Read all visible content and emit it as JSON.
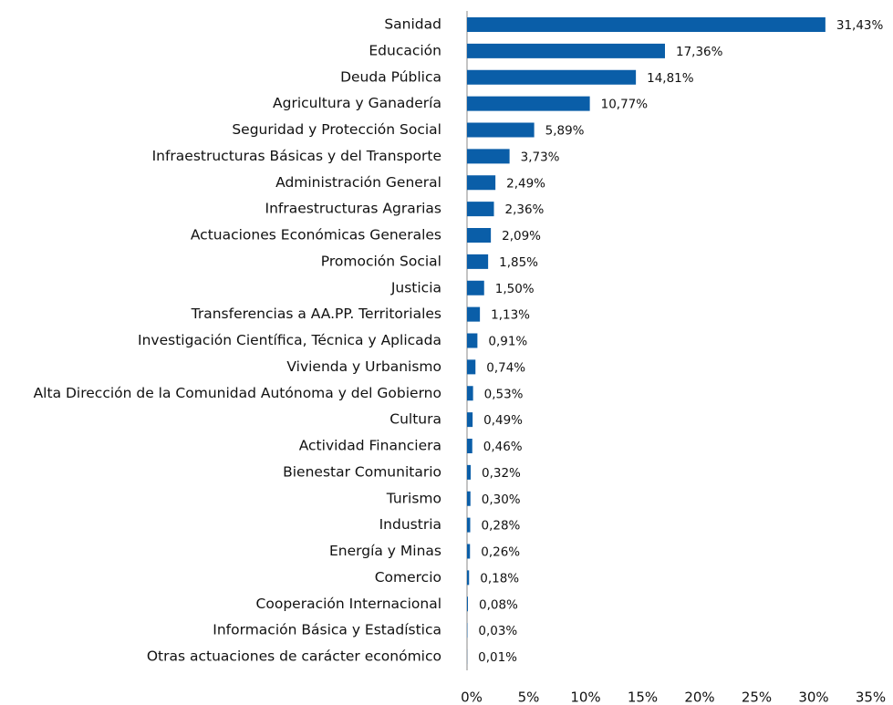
{
  "chart_data": {
    "type": "bar",
    "orientation": "horizontal",
    "color": "#0a5ea8",
    "categories": [
      "Sanidad",
      "Educación",
      "Deuda Pública",
      "Agricultura y Ganadería",
      "Seguridad y Protección Social",
      "Infraestructuras Básicas y del Transporte",
      "Administración General",
      "Infraestructuras Agrarias",
      "Actuaciones Económicas Generales",
      "Promoción Social",
      "Justicia",
      "Transferencias a AA.PP. Territoriales",
      "Investigación Científica, Técnica y Aplicada",
      "Vivienda y Urbanismo",
      "Alta Dirección de la Comunidad Autónoma y del Gobierno",
      "Cultura",
      "Actividad Financiera",
      "Bienestar Comunitario",
      "Turismo",
      "Industria",
      "Energía y Minas",
      "Comercio",
      "Cooperación Internacional",
      "Información Básica y Estadística",
      "Otras actuaciones de carácter económico"
    ],
    "values": [
      31.43,
      17.36,
      14.81,
      10.77,
      5.89,
      3.73,
      2.49,
      2.36,
      2.09,
      1.85,
      1.5,
      1.13,
      0.91,
      0.74,
      0.53,
      0.49,
      0.46,
      0.32,
      0.3,
      0.28,
      0.26,
      0.18,
      0.08,
      0.03,
      0.01
    ],
    "value_labels": [
      "31,43%",
      "17,36%",
      "14,81%",
      "10,77%",
      "5,89%",
      "3,73%",
      "2,49%",
      "2,36%",
      "2,09%",
      "1,85%",
      "1,50%",
      "1,13%",
      "0,91%",
      "0,74%",
      "0,53%",
      "0,49%",
      "0,46%",
      "0,32%",
      "0,30%",
      "0,28%",
      "0,26%",
      "0,18%",
      "0,08%",
      "0,03%",
      "0,01%"
    ],
    "xlim": [
      0,
      35
    ],
    "xticks": [
      {
        "value": 0,
        "label": "0%"
      },
      {
        "value": 5,
        "label": "5%"
      },
      {
        "value": 10,
        "label": "10%"
      },
      {
        "value": 15,
        "label": "15%"
      },
      {
        "value": 20,
        "label": "20%"
      },
      {
        "value": 25,
        "label": "25%"
      },
      {
        "value": 30,
        "label": "30%"
      },
      {
        "value": 35,
        "label": "35%"
      }
    ]
  }
}
